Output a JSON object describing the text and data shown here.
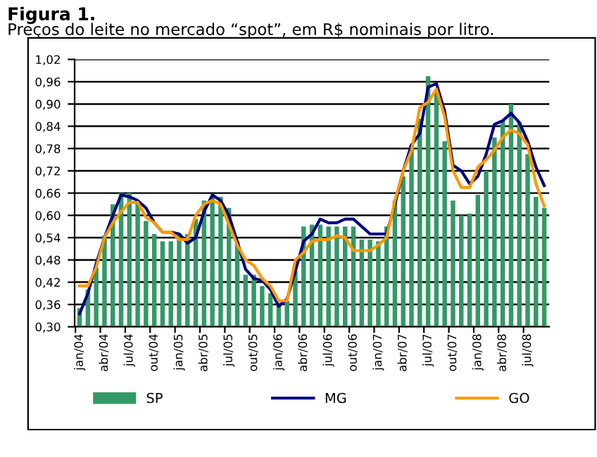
{
  "chart_data": {
    "type": "bar",
    "title": "Figura 1.",
    "subtitle": "Preços do leite no mercado “spot”, em R$ nominais por litro.",
    "categories": [
      "jan/04",
      null,
      null,
      "abr/04",
      null,
      null,
      "jul/04",
      null,
      null,
      "out/04",
      null,
      null,
      "jan/05",
      null,
      null,
      "abr/05",
      null,
      null,
      "jul/05",
      null,
      null,
      "out/05",
      null,
      null,
      "jan/06",
      null,
      null,
      "abr/06",
      null,
      null,
      "jul/06",
      null,
      null,
      "out/06",
      null,
      null,
      "jan/07",
      null,
      null,
      "abr/07",
      null,
      null,
      "jul/07",
      null,
      null,
      "out/07",
      null,
      null,
      "jan/08",
      null,
      null,
      "abr/08",
      null,
      null,
      "jul/08",
      null,
      null
    ],
    "series": [
      {
        "name": "SP",
        "color": "#339966",
        "values": [
          0.35,
          0.4,
          0.46,
          0.545,
          0.63,
          0.66,
          0.66,
          0.64,
          0.585,
          0.55,
          0.53,
          0.53,
          0.55,
          0.55,
          0.59,
          0.64,
          0.65,
          0.65,
          0.62,
          0.53,
          0.44,
          0.44,
          0.41,
          0.39,
          0.365,
          0.37,
          0.45,
          0.57,
          0.575,
          0.575,
          0.57,
          0.57,
          0.57,
          0.57,
          0.535,
          0.535,
          0.53,
          0.57,
          0.64,
          0.705,
          0.79,
          0.86,
          0.975,
          0.935,
          0.8,
          0.64,
          0.6,
          0.605,
          0.655,
          0.72,
          0.81,
          0.855,
          0.9,
          0.85,
          0.765,
          0.65,
          0.62
        ]
      },
      {
        "name": "MG",
        "type": "line",
        "color": "#000080",
        "values": [
          0.335,
          0.39,
          0.47,
          0.54,
          0.6,
          0.655,
          0.65,
          0.64,
          0.62,
          0.58,
          0.555,
          0.555,
          0.55,
          0.525,
          0.54,
          0.61,
          0.655,
          0.64,
          0.6,
          0.53,
          0.455,
          0.43,
          0.425,
          0.4,
          0.355,
          0.375,
          0.45,
          0.53,
          0.55,
          0.59,
          0.58,
          0.58,
          0.59,
          0.59,
          0.57,
          0.55,
          0.55,
          0.55,
          0.63,
          0.72,
          0.79,
          0.82,
          0.945,
          0.955,
          0.88,
          0.735,
          0.72,
          0.685,
          0.705,
          0.765,
          0.845,
          0.855,
          0.875,
          0.85,
          0.8,
          0.73,
          0.68
        ]
      },
      {
        "name": "GO",
        "type": "line",
        "color": "#ff9900",
        "values": [
          0.41,
          0.41,
          0.46,
          0.54,
          0.58,
          0.61,
          0.635,
          0.635,
          0.595,
          0.58,
          0.555,
          0.555,
          0.535,
          0.535,
          0.6,
          0.63,
          0.64,
          0.63,
          0.575,
          0.52,
          0.48,
          0.465,
          0.43,
          0.41,
          0.37,
          0.37,
          0.48,
          0.5,
          0.53,
          0.535,
          0.535,
          0.545,
          0.54,
          0.505,
          0.505,
          0.505,
          0.52,
          0.54,
          0.64,
          0.72,
          0.775,
          0.89,
          0.905,
          0.94,
          0.865,
          0.72,
          0.675,
          0.675,
          0.73,
          0.75,
          0.775,
          0.81,
          0.83,
          0.82,
          0.79,
          0.685,
          0.625
        ]
      }
    ],
    "ylim": [
      0.3,
      1.02
    ],
    "yticks": [
      {
        "value": 0.3,
        "label": "0,30"
      },
      {
        "value": 0.36,
        "label": "0,36"
      },
      {
        "value": 0.42,
        "label": "0,42"
      },
      {
        "value": 0.48,
        "label": "0,48"
      },
      {
        "value": 0.54,
        "label": "0,54"
      },
      {
        "value": 0.6,
        "label": "0,60"
      },
      {
        "value": 0.66,
        "label": "0,66"
      },
      {
        "value": 0.72,
        "label": "0,72"
      },
      {
        "value": 0.78,
        "label": "0,78"
      },
      {
        "value": 0.84,
        "label": "0,84"
      },
      {
        "value": 0.9,
        "label": "0,90"
      },
      {
        "value": 0.96,
        "label": "0,96"
      },
      {
        "value": 1.02,
        "label": "1,02"
      }
    ],
    "grid": "y",
    "legend": "bottom"
  }
}
